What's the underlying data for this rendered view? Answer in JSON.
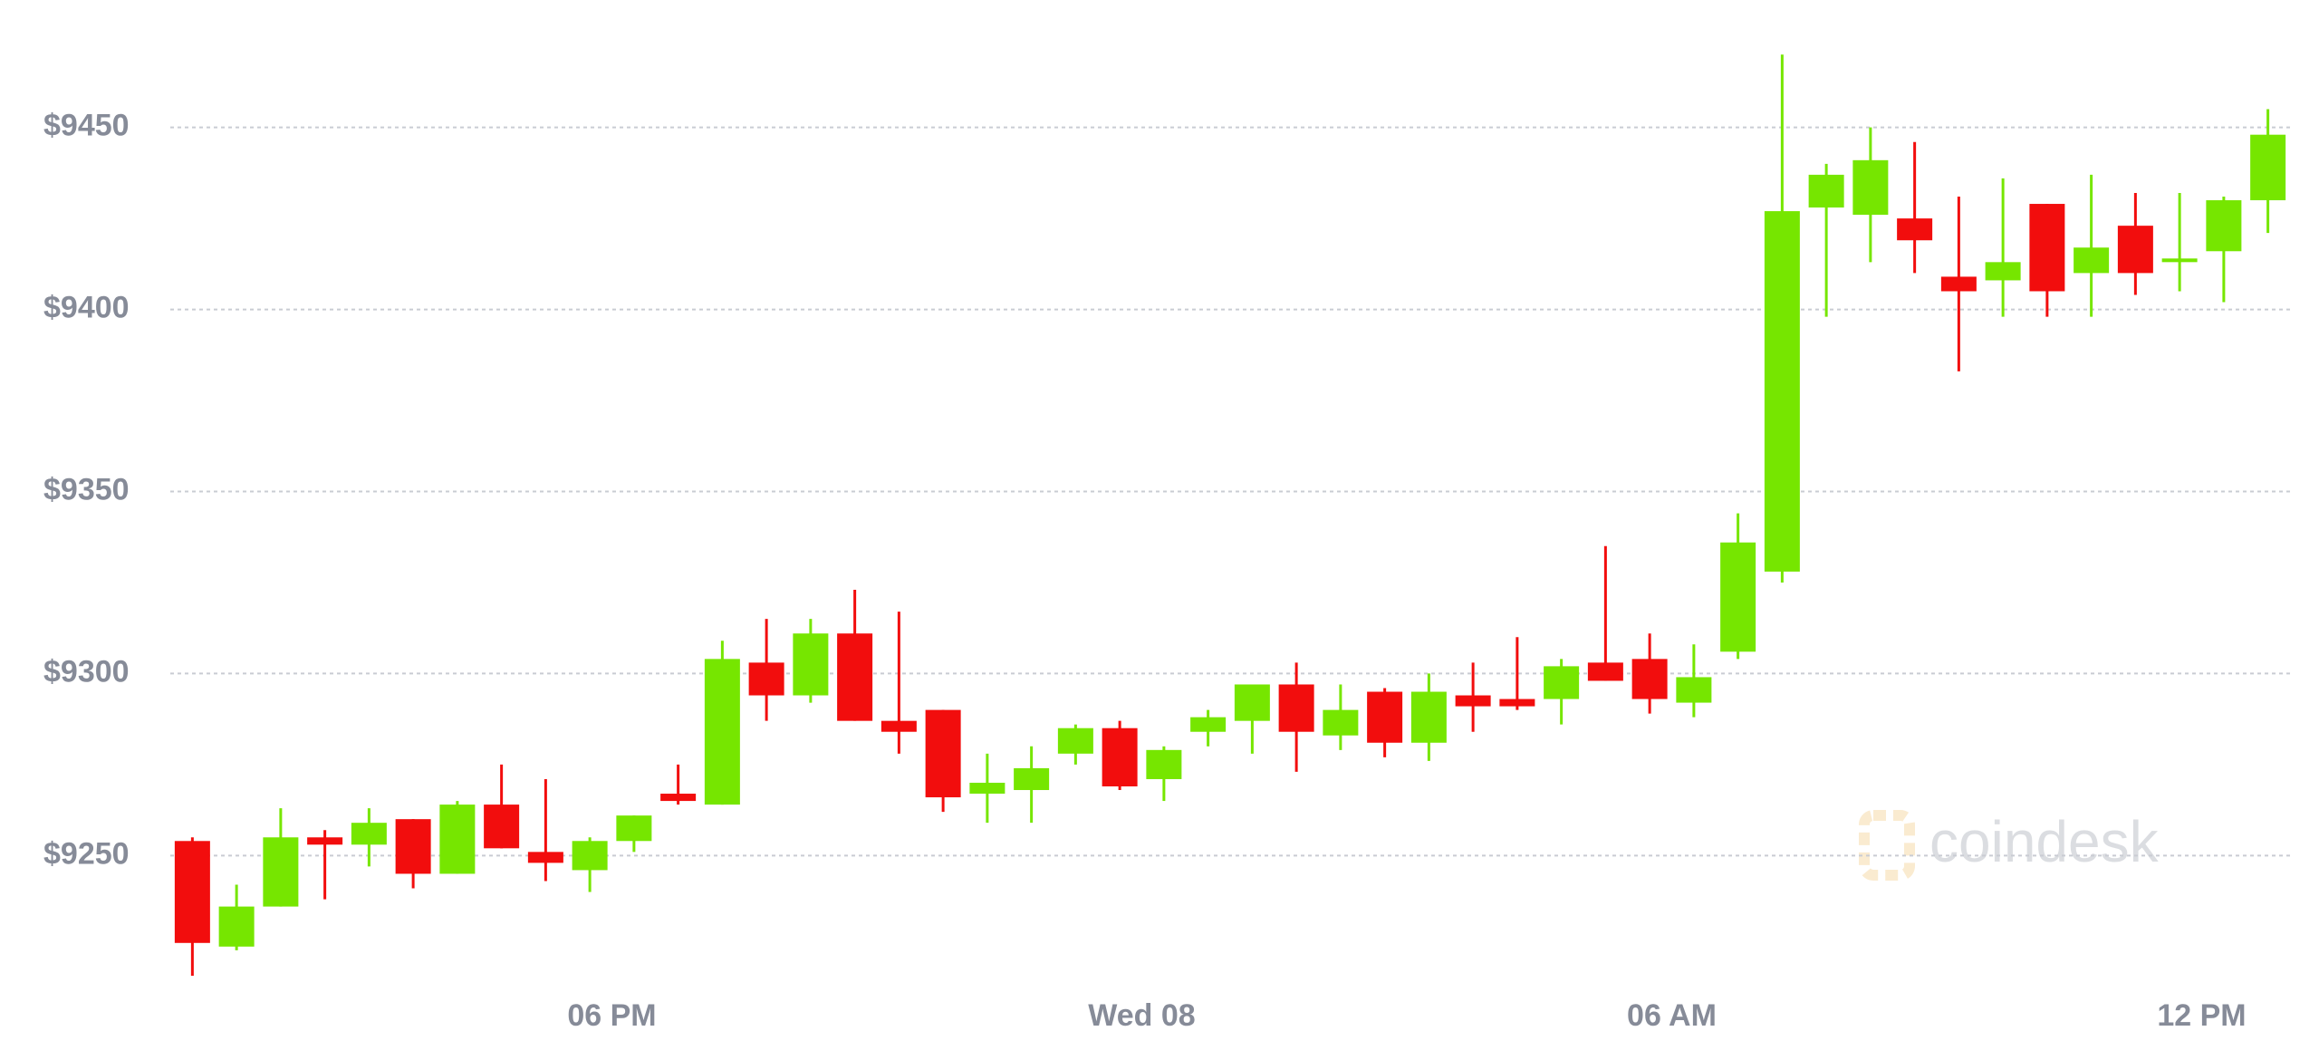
{
  "chart_data": {
    "type": "candlestick",
    "open": [
      9254,
      9225,
      9236,
      9255,
      9253,
      9260,
      9245,
      9264,
      9251,
      9246,
      9254,
      9267,
      9264,
      9303,
      9294,
      9311,
      9287,
      9290,
      9267,
      9268,
      9278,
      9285,
      9271,
      9284,
      9287,
      9297,
      9283,
      9295,
      9281,
      9294,
      9293,
      9293,
      9303,
      9304,
      9292,
      9306,
      9328,
      9428,
      9426,
      9425,
      9409,
      9408,
      9429,
      9410,
      9423,
      9413,
      9416,
      9430
    ],
    "high": [
      9255,
      9242,
      9263,
      9257,
      9263,
      9260,
      9265,
      9275,
      9271,
      9255,
      9261,
      9275,
      9309,
      9315,
      9315,
      9323,
      9317,
      9290,
      9278,
      9280,
      9286,
      9287,
      9280,
      9290,
      9297,
      9303,
      9297,
      9296,
      9300,
      9303,
      9310,
      9304,
      9335,
      9311,
      9308,
      9344,
      9470,
      9440,
      9450,
      9446,
      9431,
      9436,
      9429,
      9437,
      9432,
      9432,
      9431,
      9455
    ],
    "low": [
      9217,
      9224,
      9236,
      9238,
      9247,
      9241,
      9245,
      9252,
      9243,
      9240,
      9251,
      9264,
      9264,
      9287,
      9292,
      9287,
      9278,
      9262,
      9259,
      9259,
      9275,
      9268,
      9265,
      9280,
      9278,
      9273,
      9279,
      9277,
      9276,
      9284,
      9290,
      9286,
      9298,
      9289,
      9288,
      9304,
      9325,
      9398,
      9413,
      9410,
      9383,
      9398,
      9398,
      9398,
      9404,
      9405,
      9402,
      9421
    ],
    "close": [
      9226,
      9236,
      9255,
      9253,
      9259,
      9245,
      9264,
      9252,
      9248,
      9254,
      9261,
      9265,
      9304,
      9294,
      9311,
      9287,
      9284,
      9266,
      9270,
      9274,
      9285,
      9269,
      9279,
      9288,
      9297,
      9284,
      9290,
      9281,
      9295,
      9291,
      9291,
      9302,
      9298,
      9293,
      9299,
      9336,
      9427,
      9437,
      9441,
      9419,
      9405,
      9413,
      9405,
      9417,
      9410,
      9414,
      9430,
      9448
    ],
    "up_color": "#76e600",
    "down_color": "#f20d0d",
    "ylim": [
      9215,
      9485
    ],
    "yticks": [
      {
        "value": 9250,
        "label": "$9250"
      },
      {
        "value": 9300,
        "label": "$9300"
      },
      {
        "value": 9350,
        "label": "$9350"
      },
      {
        "value": 9400,
        "label": "$9400"
      },
      {
        "value": 9450,
        "label": "$9450"
      }
    ],
    "xlim": [
      -0.5,
      47.5
    ],
    "xticks": [
      {
        "value": 9.5,
        "label": "06 PM"
      },
      {
        "value": 21.5,
        "label": "Wed 08"
      },
      {
        "value": 33.5,
        "label": "06 AM"
      },
      {
        "value": 45.5,
        "label": "12 PM"
      }
    ],
    "grid": true,
    "watermark": "coindesk"
  }
}
